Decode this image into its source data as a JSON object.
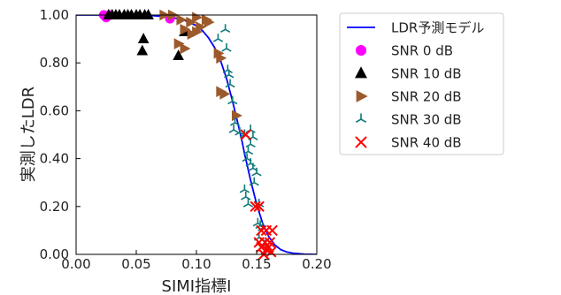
{
  "chart_data": {
    "type": "scatter",
    "xlabel": "SIMI指標I",
    "ylabel": "実測したLDR",
    "xlim": [
      0.0,
      0.2
    ],
    "ylim": [
      0.0,
      1.0
    ],
    "x_ticks": [
      0.0,
      0.05,
      0.1,
      0.15,
      0.2
    ],
    "x_tick_labels": [
      "0.00",
      "0.05",
      "0.10",
      "0.15",
      "0.20"
    ],
    "y_ticks": [
      0.0,
      0.2,
      0.4,
      0.6,
      0.8,
      1.0
    ],
    "y_tick_labels": [
      "0.00",
      "0.20",
      "0.40",
      "0.60",
      "0.80",
      "1.00"
    ],
    "grid": false,
    "legend_position": "outside-right",
    "model_curve": {
      "name": "LDR予測モデル",
      "color": "#0000ff",
      "x": [
        0.0,
        0.02,
        0.04,
        0.06,
        0.08,
        0.09,
        0.1,
        0.105,
        0.11,
        0.115,
        0.12,
        0.125,
        0.13,
        0.135,
        0.138,
        0.14,
        0.145,
        0.15,
        0.155,
        0.16,
        0.165,
        0.17,
        0.175,
        0.18,
        0.19,
        0.2
      ],
      "y": [
        1.0,
        1.0,
        1.0,
        0.999,
        0.99,
        0.978,
        0.955,
        0.935,
        0.905,
        0.865,
        0.81,
        0.735,
        0.64,
        0.535,
        0.47,
        0.42,
        0.31,
        0.21,
        0.13,
        0.075,
        0.04,
        0.02,
        0.01,
        0.005,
        0.001,
        0.0
      ]
    },
    "series": [
      {
        "name": "SNR 0 dB",
        "marker": "circle",
        "color": "#ff00ff",
        "points": [
          [
            0.023,
            1.0
          ],
          [
            0.025,
            0.99
          ],
          [
            0.028,
            1.0
          ],
          [
            0.078,
            0.985
          ]
        ]
      },
      {
        "name": "SNR 10 dB",
        "marker": "triangle-up",
        "color": "#000000",
        "points": [
          [
            0.027,
            1.0
          ],
          [
            0.03,
            1.0
          ],
          [
            0.033,
            1.0
          ],
          [
            0.036,
            1.0
          ],
          [
            0.04,
            1.0
          ],
          [
            0.043,
            1.0
          ],
          [
            0.046,
            1.0
          ],
          [
            0.05,
            1.0
          ],
          [
            0.053,
            1.0
          ],
          [
            0.057,
            1.0
          ],
          [
            0.06,
            1.0
          ],
          [
            0.056,
            0.9
          ],
          [
            0.055,
            0.85
          ],
          [
            0.085,
            0.83
          ],
          [
            0.09,
            0.93
          ]
        ]
      },
      {
        "name": "SNR 20 dB",
        "marker": "triangle-right",
        "color": "#9c5a2c",
        "points": [
          [
            0.073,
            1.0
          ],
          [
            0.08,
            1.0
          ],
          [
            0.087,
            0.98
          ],
          [
            0.095,
            0.97
          ],
          [
            0.1,
            0.99
          ],
          [
            0.108,
            0.98
          ],
          [
            0.11,
            0.97
          ],
          [
            0.09,
            0.94
          ],
          [
            0.096,
            0.92
          ],
          [
            0.1,
            0.93
          ],
          [
            0.103,
            0.95
          ],
          [
            0.085,
            0.88
          ],
          [
            0.09,
            0.86
          ],
          [
            0.118,
            0.84
          ],
          [
            0.12,
            0.82
          ],
          [
            0.12,
            0.68
          ],
          [
            0.123,
            0.67
          ],
          [
            0.133,
            0.58
          ]
        ]
      },
      {
        "name": "SNR 30 dB",
        "marker": "tri",
        "color": "#0f7a7a",
        "points": [
          [
            0.124,
            0.94
          ],
          [
            0.118,
            0.9
          ],
          [
            0.125,
            0.86
          ],
          [
            0.126,
            0.77
          ],
          [
            0.127,
            0.75
          ],
          [
            0.128,
            0.71
          ],
          [
            0.13,
            0.64
          ],
          [
            0.132,
            0.55
          ],
          [
            0.131,
            0.52
          ],
          [
            0.136,
            0.51
          ],
          [
            0.14,
            0.5
          ],
          [
            0.145,
            0.52
          ],
          [
            0.147,
            0.49
          ],
          [
            0.145,
            0.46
          ],
          [
            0.143,
            0.43
          ],
          [
            0.142,
            0.4
          ],
          [
            0.145,
            0.38
          ],
          [
            0.147,
            0.36
          ],
          [
            0.15,
            0.34
          ],
          [
            0.148,
            0.3
          ],
          [
            0.14,
            0.27
          ],
          [
            0.141,
            0.24
          ],
          [
            0.143,
            0.21
          ],
          [
            0.15,
            0.2
          ],
          [
            0.152,
            0.21
          ],
          [
            0.151,
            0.13
          ],
          [
            0.153,
            0.12
          ],
          [
            0.155,
            0.11
          ],
          [
            0.152,
            0.07
          ],
          [
            0.157,
            0.04
          ]
        ]
      },
      {
        "name": "SNR 40 dB",
        "marker": "x",
        "color": "#ff0000",
        "points": [
          [
            0.141,
            0.5
          ],
          [
            0.149,
            0.2
          ],
          [
            0.152,
            0.2
          ],
          [
            0.154,
            0.1
          ],
          [
            0.158,
            0.1
          ],
          [
            0.163,
            0.1
          ],
          [
            0.152,
            0.05
          ],
          [
            0.157,
            0.05
          ],
          [
            0.161,
            0.05
          ],
          [
            0.154,
            0.03
          ],
          [
            0.158,
            0.02
          ],
          [
            0.16,
            0.03
          ],
          [
            0.156,
            0.0
          ],
          [
            0.162,
            0.01
          ]
        ]
      }
    ]
  }
}
